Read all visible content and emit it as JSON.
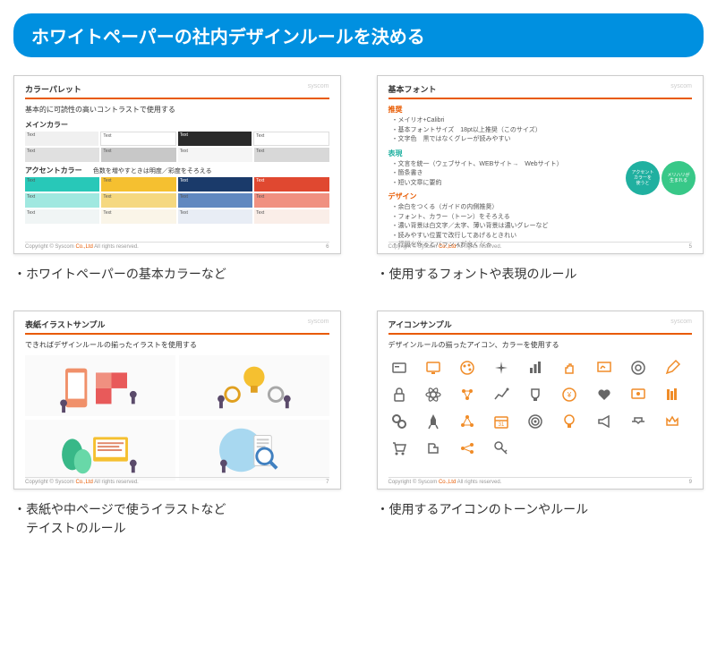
{
  "banner": "ホワイトペーパーの社内デザインルールを決める",
  "logo_text": "syscom",
  "footer_copyright": "Copyright © Syscom",
  "footer_link": "Co.,Ltd",
  "footer_suffix": " All rights reserved.",
  "colors": {
    "banner_bg": "#0090e0",
    "accent_orange": "#e85a00",
    "accent_teal": "#20b0a0",
    "icon_gray": "#666666",
    "icon_orange": "#f08c28"
  },
  "slide1": {
    "title": "カラーパレット",
    "subtitle": "基本的に可読性の高いコントラストで使用する",
    "section_main": "メインカラー",
    "section_accent": "アクセントカラー",
    "section_accent_note": "色数を増やすときは明度／彩度をそろえる",
    "main_colors_row1": [
      {
        "hex": "#f0f0f0",
        "label": "Text",
        "light": false
      },
      {
        "hex": "#ffffff",
        "label": "Text",
        "light": false,
        "border": true
      },
      {
        "hex": "#2a2a2a",
        "label": "Text",
        "light": true
      },
      {
        "hex": "#ffffff",
        "label": "Text",
        "light": false,
        "border": true
      }
    ],
    "main_colors_row2": [
      {
        "hex": "#e0e0e0",
        "label": "Text",
        "light": false
      },
      {
        "hex": "#c8c8c8",
        "label": "Text",
        "light": false
      },
      {
        "hex": "#f5f5f5",
        "label": "Text",
        "light": false
      },
      {
        "hex": "#d8d8d8",
        "label": "Text",
        "light": false
      }
    ],
    "accent_row1": [
      {
        "hex": "#28c8b8",
        "label": "Text",
        "light": false
      },
      {
        "hex": "#f5c030",
        "label": "Text",
        "light": false
      },
      {
        "hex": "#1a3a6a",
        "label": "Text",
        "light": true
      },
      {
        "hex": "#e04830",
        "label": "Text",
        "light": true
      }
    ],
    "accent_row2": [
      {
        "hex": "#a0e8e0",
        "label": "Text",
        "light": false
      },
      {
        "hex": "#f5d880",
        "label": "Text",
        "light": false
      },
      {
        "hex": "#6088c0",
        "label": "Text",
        "light": false
      },
      {
        "hex": "#f09080",
        "label": "Text",
        "light": false
      }
    ],
    "accent_row3": [
      {
        "hex": "#f0f5f5",
        "label": "Text",
        "light": false
      },
      {
        "hex": "#faf5e8",
        "label": "Text",
        "light": false
      },
      {
        "hex": "#e8edf5",
        "label": "Text",
        "light": false
      },
      {
        "hex": "#faeee8",
        "label": "Text",
        "light": false
      }
    ],
    "page_num": "6",
    "caption": "・ホワイトペーパーの基本カラーなど"
  },
  "slide2": {
    "title": "基本フォント",
    "sec_rec": "推奨",
    "rec_items": [
      "メイリオ+Calibri",
      "基本フォントサイズ　18pt以上推奨（このサイズ）",
      "文字色　黒ではなくグレーが読みやすい"
    ],
    "sec_exp": "表現",
    "exp_items": [
      "文言を統一（ウェブサイト、WEBサイト→　Webサイト）",
      "箇条書き",
      "短い文章に要約"
    ],
    "sec_des": "デザイン",
    "des_items": [
      "余白をつくる（ガイドの内側推奨）",
      "フォント、カラー（トーン）をそろえる",
      "濃い背景は白文字／太字、薄い背景は濃いグレーなど",
      "読みやすい位置で改行してあげるときれい",
      "行間を作るとバランスが良くなる"
    ],
    "bubble1": {
      "text": "アクセント\nカラーを\n使うと",
      "bg": "#20b0a0"
    },
    "bubble2": {
      "text": "メリハリが\n生まれる",
      "bg": "#38c888"
    },
    "page_num": "5",
    "caption": "・使用するフォントや表現のルール"
  },
  "slide3": {
    "title": "表紙イラストサンプル",
    "subtitle": "できればデザインルールの揃ったイラストを使用する",
    "illus_colors": {
      "phone": "#f0906a",
      "screen": "#ffffff",
      "puzzle1": "#f09080",
      "puzzle2": "#e85a5a",
      "bulb": "#f5c030",
      "gear": "#e0a020",
      "leaf": "#38b888",
      "monitor": "#5890c8",
      "magnify": "#4080c0",
      "circle": "#a8d8f0",
      "person": "#5a4a6a"
    },
    "page_num": "7",
    "caption": "・表紙や中ページで使うイラストなど\n　テイストのルール"
  },
  "slide4": {
    "title": "アイコンサンプル",
    "subtitle": "デザインルールの揃ったアイコン、カラーを使用する",
    "icon_colors": [
      "#666666",
      "#f08c28"
    ],
    "icon_names_row1": [
      "card",
      "monitor",
      "palette",
      "sparkle",
      "chart",
      "hand",
      "presentation",
      "target",
      "pencil"
    ],
    "icon_names_row2": [
      "lock",
      "atom",
      "molecule",
      "graph",
      "trophy",
      "money",
      "heart",
      "screen",
      "books"
    ],
    "icon_names_row3": [
      "gears",
      "rocket",
      "network",
      "calendar",
      "bullseye",
      "bulb",
      "megaphone",
      "handshake",
      "crown"
    ],
    "icon_names_row4": [
      "cart",
      "puzzle",
      "nodes",
      "key"
    ],
    "page_num": "9",
    "caption": "・使用するアイコンのトーンやルール"
  }
}
